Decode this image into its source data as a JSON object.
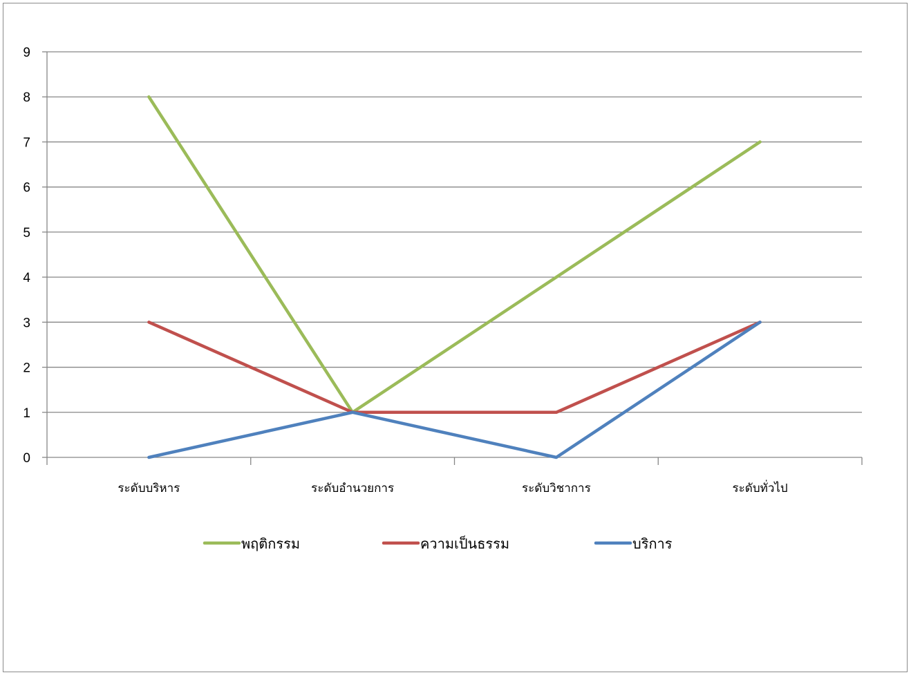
{
  "chart_data": {
    "type": "line",
    "categories": [
      "ระดับบริหาร",
      "ระดับอำนวยการ",
      "ระดับวิชาการ",
      "ระดับทั่วไป"
    ],
    "series": [
      {
        "name": "พฤติกรรม",
        "values": [
          8,
          1,
          4,
          7
        ],
        "color": "#9BBB59"
      },
      {
        "name": "ความเป็นธรรม",
        "values": [
          3,
          1,
          1,
          3
        ],
        "color": "#C0504D"
      },
      {
        "name": "บริการ",
        "values": [
          0,
          1,
          0,
          3
        ],
        "color": "#4F81BD"
      }
    ],
    "yticks": [
      "0",
      "1",
      "2",
      "3",
      "4",
      "5",
      "6",
      "7",
      "8",
      "9"
    ],
    "ylim": [
      0,
      9
    ],
    "grid": true,
    "legend_position": "bottom"
  }
}
